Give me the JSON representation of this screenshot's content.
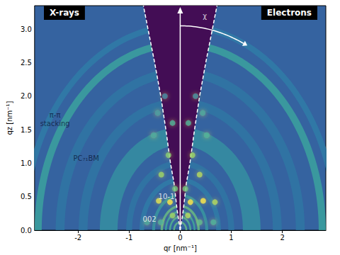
{
  "chart_data": {
    "type": "scattering_image",
    "panel_labels": [
      "X-rays",
      "Electrons"
    ],
    "x_label": "qr [nm⁻¹]",
    "y_label": "qz [nm⁻¹]",
    "xlim": [
      -2.85,
      2.85
    ],
    "ylim": [
      0,
      3.35
    ],
    "xticks": [
      -2,
      -1,
      0,
      1,
      2
    ],
    "yticks": [
      {
        "value": 0,
        "label": "0.0"
      },
      {
        "value": 0.5,
        "label": "0.5"
      },
      {
        "value": 1,
        "label": "1.0"
      },
      {
        "value": 1.5,
        "label": "1.5"
      },
      {
        "value": 2,
        "label": "2.0"
      },
      {
        "value": 2.5,
        "label": "2.5"
      },
      {
        "value": 3,
        "label": "3.0"
      }
    ],
    "grid": false,
    "rings": [
      {
        "q": 0.12,
        "width": 0.03,
        "intensity": 0.7
      },
      {
        "q": 0.2,
        "width": 0.03,
        "intensity": 0.65
      },
      {
        "q": 0.28,
        "width": 0.03,
        "intensity": 0.6
      },
      {
        "q": 0.36,
        "width": 0.04,
        "intensity": 0.7
      },
      {
        "q": 0.52,
        "width": 0.05,
        "intensity": 0.5
      },
      {
        "q": 0.75,
        "width": 0.08,
        "intensity": 0.35
      },
      {
        "q": 1.0,
        "width": 0.1,
        "intensity": 0.3
      },
      {
        "q": 1.4,
        "width": 0.3,
        "intensity": 0.45
      },
      {
        "q": 1.9,
        "width": 0.15,
        "intensity": 0.3
      },
      {
        "q": 2.35,
        "width": 0.15,
        "intensity": 0.3
      },
      {
        "q": 2.78,
        "width": 0.12,
        "intensity": 0.55
      },
      {
        "q": 3.05,
        "width": 0.1,
        "intensity": 0.35
      }
    ],
    "spots": [
      [
        -0.42,
        0.44,
        0.95
      ],
      [
        -0.2,
        0.42,
        1.0
      ],
      [
        0.2,
        0.42,
        1.0
      ],
      [
        0.45,
        0.44,
        1.0
      ],
      [
        0.68,
        0.42,
        0.85
      ],
      [
        -0.37,
        0.83,
        0.8
      ],
      [
        0.38,
        0.83,
        0.85
      ],
      [
        -0.23,
        1.12,
        0.75
      ],
      [
        0.24,
        1.12,
        0.8
      ],
      [
        -0.52,
        1.42,
        0.55
      ],
      [
        0.52,
        1.42,
        0.6
      ],
      [
        -0.15,
        1.6,
        0.6
      ],
      [
        0.16,
        1.6,
        0.6
      ],
      [
        -0.44,
        1.75,
        0.5
      ],
      [
        0.44,
        1.75,
        0.55
      ],
      [
        -0.3,
        2.0,
        0.4
      ],
      [
        0.3,
        2.0,
        0.45
      ],
      [
        -0.15,
        0.22,
        0.8
      ],
      [
        0.15,
        0.22,
        0.85
      ],
      [
        -0.38,
        0.12,
        0.6
      ],
      [
        0.38,
        0.12,
        0.65
      ],
      [
        -0.65,
        0.12,
        0.55
      ],
      [
        0.65,
        0.12,
        0.6
      ],
      [
        -0.1,
        0.62,
        0.7
      ],
      [
        0.1,
        0.62,
        0.7
      ]
    ],
    "missing_wedge": [
      [
        0,
        0
      ],
      [
        0.06,
        0.3
      ],
      [
        0.12,
        0.7
      ],
      [
        0.19,
        1.0
      ],
      [
        0.28,
        1.5
      ],
      [
        0.38,
        2.0
      ],
      [
        0.5,
        2.5
      ],
      [
        0.63,
        3.0
      ],
      [
        0.72,
        3.35
      ]
    ],
    "chi_arrow": {
      "r": 3.05,
      "angles": [
        90,
        66
      ]
    },
    "annotations": [
      {
        "text": "χ",
        "x": 0.48,
        "y": 3.2,
        "color": "#ffffff"
      },
      {
        "text": "π-π\nstacking",
        "x": -2.45,
        "y": 1.65,
        "color": "#0d1a3a"
      },
      {
        "text": "PC₇₁BM",
        "x": -1.84,
        "y": 1.07,
        "color": "#0d1a3a"
      },
      {
        "text": "10-1",
        "x": -0.27,
        "y": 0.5,
        "color": "#ffffff"
      },
      {
        "text": "002",
        "x": -0.6,
        "y": 0.16,
        "color": "#ffffff"
      }
    ]
  }
}
